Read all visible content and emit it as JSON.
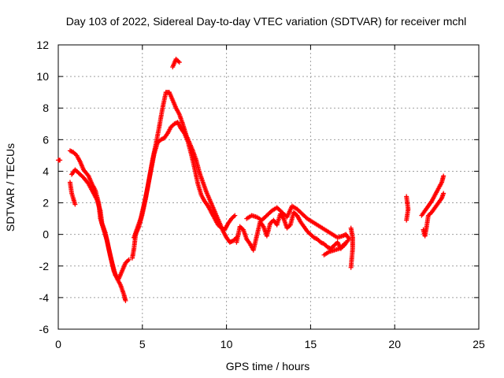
{
  "chart_data": {
    "type": "scatter",
    "title": "Day 103 of 2022, Sidereal Day-to-day VTEC variation (SDTVAR) for receiver mchl",
    "xlabel": "GPS time / hours",
    "ylabel": "SDTVAR / TECUs",
    "xlim": [
      0,
      25
    ],
    "ylim": [
      -6,
      12
    ],
    "xticks": [
      0,
      5,
      10,
      15,
      20,
      25
    ],
    "xtick_labels": [
      "0",
      "5",
      "10",
      "15",
      "20",
      "25"
    ],
    "yticks": [
      -6,
      -4,
      -2,
      0,
      2,
      4,
      6,
      8,
      10,
      12
    ],
    "ytick_labels": [
      "-6",
      "-4",
      "-2",
      "0",
      "2",
      "4",
      "6",
      "8",
      "10",
      "12"
    ],
    "grid": true,
    "marker": "+",
    "color": "#ff0000",
    "series": [
      {
        "name": "SDTVAR",
        "tracks": [
          [
            [
              0.0,
              4.7
            ],
            [
              0.1,
              4.7
            ]
          ],
          [
            [
              0.7,
              5.3
            ],
            [
              0.9,
              5.2
            ],
            [
              1.1,
              5.0
            ],
            [
              1.3,
              4.6
            ],
            [
              1.5,
              4.1
            ],
            [
              1.8,
              3.7
            ],
            [
              2.0,
              3.2
            ],
            [
              2.2,
              2.8
            ],
            [
              2.4,
              2.0
            ],
            [
              2.5,
              1.0
            ],
            [
              2.7,
              0.3
            ],
            [
              2.9,
              -0.4
            ],
            [
              3.1,
              -1.4
            ],
            [
              3.3,
              -2.3
            ],
            [
              3.5,
              -2.8
            ],
            [
              3.7,
              -3.2
            ],
            [
              3.9,
              -3.8
            ],
            [
              4.0,
              -4.2
            ]
          ],
          [
            [
              0.7,
              3.3
            ],
            [
              0.8,
              2.6
            ],
            [
              1.0,
              1.9
            ]
          ],
          [
            [
              0.8,
              3.8
            ],
            [
              1.0,
              4.1
            ],
            [
              1.2,
              3.9
            ],
            [
              1.5,
              3.6
            ],
            [
              1.8,
              3.2
            ],
            [
              2.1,
              2.6
            ],
            [
              2.3,
              2.2
            ],
            [
              2.5,
              1.5
            ],
            [
              2.6,
              0.7
            ],
            [
              2.8,
              0.1
            ],
            [
              3.0,
              -0.9
            ],
            [
              3.2,
              -1.8
            ],
            [
              3.4,
              -2.6
            ],
            [
              3.6,
              -2.8
            ],
            [
              3.8,
              -2.3
            ],
            [
              4.0,
              -1.8
            ],
            [
              4.2,
              -1.6
            ]
          ],
          [
            [
              4.4,
              -1.5
            ],
            [
              4.5,
              -0.9
            ],
            [
              4.6,
              0.0
            ],
            [
              4.8,
              0.5
            ],
            [
              5.0,
              1.3
            ],
            [
              5.2,
              2.3
            ],
            [
              5.4,
              3.5
            ],
            [
              5.6,
              4.7
            ],
            [
              5.8,
              5.7
            ],
            [
              6.0,
              6.8
            ],
            [
              6.2,
              8.0
            ],
            [
              6.4,
              9.0
            ],
            [
              6.6,
              9.0
            ],
            [
              6.8,
              8.5
            ],
            [
              7.0,
              8.0
            ],
            [
              7.2,
              7.6
            ],
            [
              7.4,
              7.0
            ],
            [
              7.6,
              6.3
            ],
            [
              7.8,
              5.8
            ],
            [
              8.0,
              5.3
            ],
            [
              8.2,
              4.7
            ],
            [
              8.4,
              3.9
            ],
            [
              8.6,
              3.3
            ],
            [
              8.8,
              2.7
            ],
            [
              9.0,
              2.2
            ],
            [
              9.2,
              1.7
            ],
            [
              9.4,
              1.2
            ],
            [
              9.6,
              0.7
            ],
            [
              9.8,
              0.2
            ],
            [
              10.0,
              -0.2
            ],
            [
              10.2,
              -0.5
            ],
            [
              10.4,
              -0.4
            ],
            [
              10.6,
              -0.2
            ]
          ],
          [
            [
              4.5,
              -0.2
            ],
            [
              4.7,
              0.4
            ],
            [
              4.9,
              1.0
            ],
            [
              5.1,
              1.9
            ],
            [
              5.3,
              2.9
            ],
            [
              5.5,
              4.0
            ],
            [
              5.7,
              5.1
            ],
            [
              5.9,
              5.8
            ],
            [
              6.1,
              6.0
            ],
            [
              6.3,
              6.1
            ],
            [
              6.5,
              6.4
            ],
            [
              6.7,
              6.8
            ],
            [
              6.9,
              7.0
            ],
            [
              7.1,
              7.1
            ],
            [
              7.3,
              6.7
            ],
            [
              7.5,
              6.4
            ],
            [
              7.7,
              5.9
            ],
            [
              7.9,
              5.1
            ],
            [
              8.1,
              4.2
            ],
            [
              8.3,
              3.2
            ],
            [
              8.5,
              2.5
            ],
            [
              8.7,
              2.1
            ],
            [
              8.9,
              1.8
            ],
            [
              9.1,
              1.4
            ],
            [
              9.3,
              1.0
            ],
            [
              9.5,
              0.6
            ],
            [
              9.7,
              0.4
            ],
            [
              9.9,
              0.3
            ],
            [
              10.1,
              0.7
            ],
            [
              10.3,
              1.0
            ],
            [
              10.5,
              1.2
            ]
          ],
          [
            [
              6.8,
              10.6
            ],
            [
              7.0,
              11.1
            ],
            [
              7.2,
              10.9
            ]
          ],
          [
            [
              10.6,
              -0.5
            ],
            [
              10.8,
              0.5
            ],
            [
              11.0,
              0.3
            ],
            [
              11.2,
              -0.3
            ],
            [
              11.4,
              -0.6
            ],
            [
              11.6,
              -1.0
            ],
            [
              11.8,
              -0.1
            ],
            [
              12.0,
              0.8
            ],
            [
              12.2,
              0.5
            ],
            [
              12.4,
              -0.1
            ],
            [
              12.6,
              0.7
            ],
            [
              12.8,
              0.9
            ],
            [
              13.0,
              0.6
            ],
            [
              13.2,
              1.3
            ],
            [
              13.4,
              1.0
            ],
            [
              13.6,
              0.4
            ],
            [
              13.8,
              0.6
            ],
            [
              14.0,
              1.4
            ],
            [
              14.2,
              1.2
            ],
            [
              14.4,
              0.8
            ],
            [
              14.6,
              0.5
            ],
            [
              14.8,
              0.2
            ],
            [
              15.0,
              0.0
            ],
            [
              15.2,
              -0.2
            ],
            [
              15.4,
              -0.3
            ],
            [
              15.6,
              -0.5
            ],
            [
              15.8,
              -0.6
            ],
            [
              16.0,
              -0.8
            ],
            [
              16.2,
              -0.9
            ],
            [
              16.4,
              -0.7
            ],
            [
              16.6,
              -0.5
            ],
            [
              16.8,
              -0.9
            ],
            [
              17.0,
              -0.6
            ]
          ],
          [
            [
              11.2,
              1.0
            ],
            [
              11.5,
              1.2
            ],
            [
              11.8,
              1.1
            ],
            [
              12.1,
              0.9
            ],
            [
              12.4,
              1.2
            ],
            [
              12.7,
              1.5
            ],
            [
              13.0,
              1.7
            ],
            [
              13.3,
              1.4
            ],
            [
              13.6,
              1.1
            ],
            [
              13.9,
              1.8
            ],
            [
              14.2,
              1.6
            ],
            [
              14.5,
              1.3
            ],
            [
              14.8,
              1.0
            ],
            [
              15.1,
              0.8
            ],
            [
              15.4,
              0.6
            ],
            [
              15.7,
              0.4
            ],
            [
              16.0,
              0.2
            ],
            [
              16.3,
              0.0
            ],
            [
              16.6,
              -0.2
            ],
            [
              16.9,
              -0.1
            ],
            [
              17.1,
              0.0
            ],
            [
              17.3,
              -0.3
            ]
          ],
          [
            [
              15.8,
              -1.3
            ],
            [
              16.1,
              -1.1
            ],
            [
              16.4,
              -1.0
            ],
            [
              16.7,
              -0.9
            ],
            [
              17.0,
              -0.7
            ],
            [
              17.2,
              -0.4
            ]
          ],
          [
            [
              17.4,
              0.4
            ],
            [
              17.5,
              -0.2
            ],
            [
              17.5,
              -0.9
            ],
            [
              17.4,
              -2.1
            ]
          ],
          [
            [
              20.7,
              2.4
            ],
            [
              20.8,
              1.6
            ],
            [
              20.7,
              0.9
            ]
          ],
          [
            [
              21.6,
              1.2
            ],
            [
              21.8,
              1.5
            ],
            [
              22.0,
              1.8
            ],
            [
              22.2,
              2.1
            ],
            [
              22.4,
              2.5
            ],
            [
              22.6,
              2.9
            ],
            [
              22.8,
              3.3
            ],
            [
              22.9,
              3.7
            ]
          ],
          [
            [
              21.7,
              0.3
            ],
            [
              21.8,
              -0.1
            ],
            [
              21.9,
              0.5
            ],
            [
              22.0,
              1.2
            ],
            [
              22.2,
              1.4
            ],
            [
              22.4,
              1.7
            ],
            [
              22.6,
              2.0
            ],
            [
              22.8,
              2.3
            ],
            [
              22.9,
              2.6
            ]
          ]
        ]
      }
    ]
  }
}
